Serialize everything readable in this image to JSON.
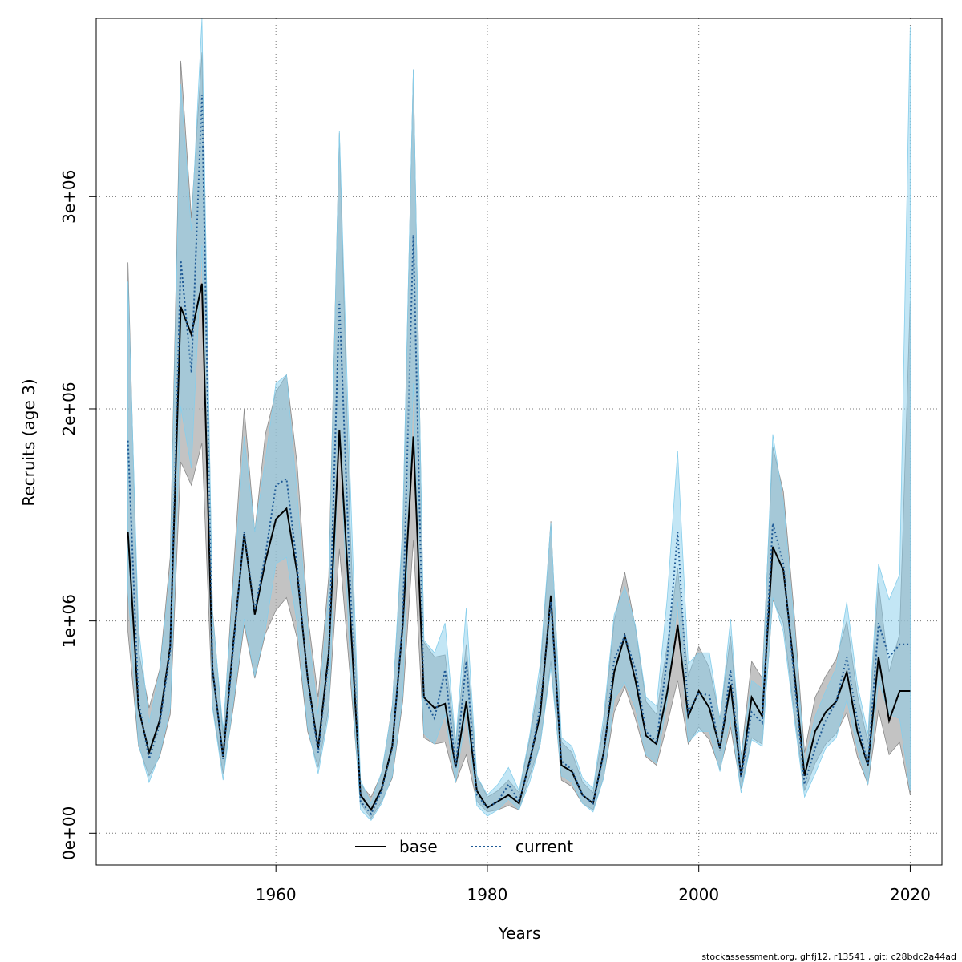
{
  "chart_data": {
    "type": "line",
    "xlabel": "Years",
    "ylabel": "Recruits (age 3)",
    "xlim": [
      1943,
      2023
    ],
    "ylim": [
      -150000,
      3840000
    ],
    "x_ticks": [
      1960,
      1980,
      2000,
      2020
    ],
    "x_tick_labels": [
      "1960",
      "1980",
      "2000",
      "2020"
    ],
    "y_ticks": [
      0,
      1000000,
      2000000,
      3000000
    ],
    "y_tick_labels": [
      "0e+00",
      "1e+06",
      "2e+06",
      "3e+06"
    ],
    "grid": true,
    "legend_position": "bottom-center",
    "x": [
      1946,
      1947,
      1948,
      1949,
      1950,
      1951,
      1952,
      1953,
      1954,
      1955,
      1956,
      1957,
      1958,
      1959,
      1960,
      1961,
      1962,
      1963,
      1964,
      1965,
      1966,
      1967,
      1968,
      1969,
      1970,
      1971,
      1972,
      1973,
      1974,
      1975,
      1976,
      1977,
      1978,
      1979,
      1980,
      1981,
      1982,
      1983,
      1984,
      1985,
      1986,
      1987,
      1988,
      1989,
      1990,
      1991,
      1992,
      1993,
      1994,
      1995,
      1996,
      1997,
      1998,
      1999,
      2000,
      2001,
      2002,
      2003,
      2004,
      2005,
      2006,
      2007,
      2008,
      2009,
      2010,
      2011,
      2012,
      2013,
      2014,
      2015,
      2016,
      2017,
      2018,
      2019,
      2020
    ],
    "series": [
      {
        "name": "base",
        "color": "#000000",
        "band_color": "#a9a9a9",
        "line_style": "solid",
        "values": [
          1420000,
          590000,
          380000,
          530000,
          880000,
          2480000,
          2350000,
          2590000,
          770000,
          360000,
          910000,
          1410000,
          1030000,
          1280000,
          1480000,
          1530000,
          1230000,
          730000,
          400000,
          850000,
          1900000,
          1050000,
          180000,
          110000,
          210000,
          410000,
          980000,
          1870000,
          640000,
          590000,
          610000,
          310000,
          620000,
          200000,
          120000,
          150000,
          180000,
          140000,
          340000,
          560000,
          1120000,
          320000,
          290000,
          180000,
          140000,
          380000,
          760000,
          930000,
          720000,
          460000,
          420000,
          660000,
          980000,
          550000,
          670000,
          590000,
          400000,
          700000,
          270000,
          640000,
          550000,
          1350000,
          1240000,
          780000,
          270000,
          480000,
          570000,
          620000,
          760000,
          480000,
          320000,
          830000,
          530000,
          670000,
          670000
        ]
      },
      {
        "name": "current",
        "color": "#1f5a96",
        "band_color": "#87ceeb",
        "line_style": "dotted",
        "values": [
          1850000,
          620000,
          350000,
          510000,
          860000,
          2700000,
          2170000,
          3480000,
          780000,
          350000,
          890000,
          1420000,
          1050000,
          1310000,
          1640000,
          1670000,
          1260000,
          720000,
          380000,
          820000,
          2510000,
          1200000,
          150000,
          90000,
          200000,
          400000,
          1000000,
          2820000,
          640000,
          540000,
          770000,
          310000,
          810000,
          180000,
          120000,
          150000,
          230000,
          150000,
          330000,
          600000,
          1090000,
          340000,
          300000,
          180000,
          140000,
          370000,
          820000,
          930000,
          770000,
          480000,
          430000,
          820000,
          1420000,
          570000,
          660000,
          650000,
          390000,
          770000,
          260000,
          570000,
          520000,
          1460000,
          1270000,
          740000,
          230000,
          400000,
          530000,
          620000,
          830000,
          530000,
          320000,
          990000,
          830000,
          890000,
          890000
        ]
      }
    ],
    "bands": {
      "base_low": [
        950000,
        410000,
        270000,
        360000,
        560000,
        1750000,
        1640000,
        1840000,
        600000,
        280000,
        600000,
        980000,
        730000,
        940000,
        1050000,
        1110000,
        920000,
        480000,
        310000,
        590000,
        1340000,
        750000,
        140000,
        70000,
        150000,
        260000,
        620000,
        1380000,
        450000,
        420000,
        430000,
        240000,
        370000,
        150000,
        100000,
        110000,
        130000,
        110000,
        270000,
        420000,
        810000,
        250000,
        220000,
        140000,
        110000,
        260000,
        570000,
        690000,
        540000,
        360000,
        320000,
        510000,
        720000,
        420000,
        500000,
        440000,
        300000,
        500000,
        210000,
        450000,
        420000,
        1100000,
        990000,
        580000,
        200000,
        330000,
        420000,
        470000,
        570000,
        360000,
        230000,
        580000,
        370000,
        430000,
        180000
      ],
      "base_high": [
        2690000,
        860000,
        590000,
        770000,
        1300000,
        3640000,
        2900000,
        3680000,
        1050000,
        460000,
        1250000,
        2000000,
        1420000,
        1880000,
        2080000,
        2160000,
        1740000,
        1030000,
        640000,
        1210000,
        3300000,
        1470000,
        230000,
        170000,
        280000,
        600000,
        1420000,
        3600000,
        900000,
        830000,
        840000,
        420000,
        890000,
        270000,
        170000,
        200000,
        250000,
        190000,
        440000,
        750000,
        1470000,
        430000,
        380000,
        240000,
        190000,
        510000,
        1000000,
        1230000,
        970000,
        620000,
        560000,
        880000,
        1250000,
        740000,
        880000,
        780000,
        540000,
        930000,
        360000,
        810000,
        730000,
        1820000,
        1610000,
        1050000,
        380000,
        640000,
        740000,
        820000,
        1000000,
        650000,
        430000,
        1180000,
        760000,
        940000,
        2510000
      ],
      "current_low": [
        1150000,
        420000,
        240000,
        370000,
        590000,
        2010000,
        1720000,
        2770000,
        590000,
        250000,
        630000,
        1010000,
        740000,
        960000,
        1270000,
        1300000,
        990000,
        500000,
        280000,
        560000,
        1900000,
        830000,
        110000,
        60000,
        140000,
        270000,
        650000,
        2120000,
        470000,
        420000,
        560000,
        240000,
        570000,
        130000,
        80000,
        110000,
        160000,
        110000,
        240000,
        420000,
        780000,
        270000,
        240000,
        140000,
        100000,
        260000,
        630000,
        710000,
        590000,
        370000,
        330000,
        620000,
        1090000,
        430000,
        480000,
        480000,
        290000,
        550000,
        190000,
        440000,
        410000,
        1110000,
        950000,
        550000,
        170000,
        280000,
        400000,
        450000,
        630000,
        400000,
        230000,
        720000,
        560000,
        540000,
        200000
      ],
      "current_high": [
        2600000,
        970000,
        520000,
        760000,
        1230000,
        3530000,
        2840000,
        4080000,
        1030000,
        490000,
        1170000,
        1870000,
        1420000,
        1760000,
        2120000,
        2160000,
        1600000,
        970000,
        560000,
        1140000,
        3310000,
        1700000,
        250000,
        140000,
        290000,
        590000,
        1460000,
        3600000,
        910000,
        850000,
        990000,
        430000,
        1060000,
        270000,
        180000,
        230000,
        310000,
        200000,
        460000,
        800000,
        1460000,
        450000,
        410000,
        260000,
        210000,
        550000,
        1030000,
        1160000,
        980000,
        640000,
        600000,
        1100000,
        1800000,
        800000,
        850000,
        850000,
        530000,
        1010000,
        350000,
        720000,
        680000,
        1880000,
        1560000,
        990000,
        330000,
        550000,
        670000,
        780000,
        1090000,
        700000,
        470000,
        1270000,
        1100000,
        1220000,
        3800000
      ]
    }
  },
  "legend": {
    "base_label": "base",
    "current_label": "current"
  },
  "footer": {
    "text": "stockassessment.org, ghfj12, r13541 , git: c28bdc2a44ad"
  }
}
